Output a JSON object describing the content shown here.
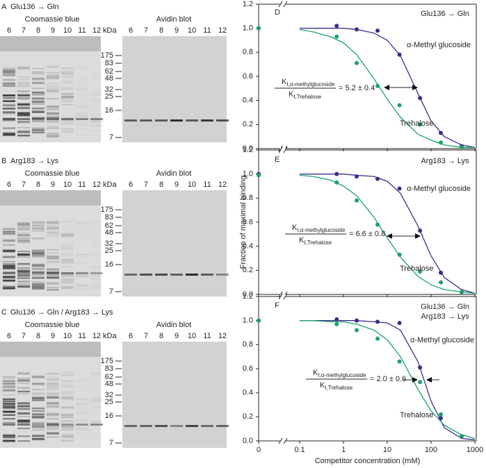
{
  "panels": [
    {
      "letter": "A",
      "mutation": "Glu136 → Gln",
      "coomassie": "Coomassie blue",
      "avidin": "Avidin blot",
      "unit": "kDa",
      "lanes": [
        "6",
        "7",
        "8",
        "9",
        "10",
        "11",
        "12"
      ],
      "markers": [
        "175",
        "83",
        "62",
        "48",
        "32",
        "25",
        "16",
        "7"
      ]
    },
    {
      "letter": "B",
      "mutation": "Arg183 → Lys",
      "coomassie": "Coomassie blue",
      "avidin": "Avidin blot",
      "unit": "kDa",
      "lanes": [
        "6",
        "7",
        "8",
        "9",
        "10",
        "11",
        "12"
      ],
      "markers": [
        "175",
        "83",
        "62",
        "48",
        "32",
        "25",
        "16",
        "7"
      ]
    },
    {
      "letter": "C",
      "mutation": "Glu136 → Gln / Arg183 → Lys",
      "coomassie": "Coomassie blue",
      "avidin": "Avidin blot",
      "unit": "kDa",
      "lanes": [
        "6",
        "7",
        "8",
        "9",
        "10",
        "11",
        "12"
      ],
      "markers": [
        "175",
        "83",
        "62",
        "48",
        "32",
        "25",
        "16",
        "7"
      ]
    }
  ],
  "chart_data": [
    {
      "type": "scatter",
      "letter": "D",
      "mutation": [
        "Glu136 → Gln"
      ],
      "log_x": true,
      "axis_break": true,
      "xlim": [
        0,
        1000
      ],
      "xticks": [
        0,
        0.1,
        1,
        10,
        100,
        1000
      ],
      "ylim": [
        0,
        1.2
      ],
      "yticks": [
        {
          "value": 0,
          "label": "0.0"
        },
        0.2,
        0.4,
        0.6,
        0.8,
        {
          "value": 1,
          "label": "1.0"
        },
        1.2
      ],
      "ratio": {
        "numerator": "K",
        "numerator_sub": "I,α-methylglucoside",
        "denominator": "K",
        "denominator_sub": "I,Trehalose",
        "value": "= 5.2 ± 0.4"
      },
      "series": [
        {
          "name": "α-Methyl glucoside",
          "color": "#3b2e8c",
          "x": [
            0,
            0.7,
            2,
            6,
            19,
            56,
            167,
            500
          ],
          "values": [
            1.0,
            1.02,
            0.99,
            0.98,
            0.78,
            0.42,
            0.13,
            0.02
          ],
          "fit_x": [
            0.1,
            0.2,
            0.5,
            1,
            2,
            5,
            10,
            20,
            50,
            100,
            200,
            500,
            1000
          ],
          "fit_values": [
            1.0,
            1.0,
            1.0,
            1.0,
            0.99,
            0.96,
            0.9,
            0.77,
            0.46,
            0.23,
            0.1,
            0.03,
            0.01
          ]
        },
        {
          "name": "Trehalose",
          "color": "#1aa36a",
          "x": [
            0,
            0.7,
            2,
            6,
            19,
            56,
            167,
            500
          ],
          "values": [
            1.0,
            0.93,
            0.71,
            0.52,
            0.36,
            0.2,
            0.05,
            0.01
          ],
          "fit_x": [
            0.1,
            0.2,
            0.5,
            1,
            2,
            5,
            10,
            20,
            50,
            100,
            200,
            500,
            1000
          ],
          "fit_values": [
            0.99,
            0.97,
            0.93,
            0.88,
            0.78,
            0.58,
            0.41,
            0.26,
            0.12,
            0.07,
            0.03,
            0.01,
            0.01
          ]
        }
      ]
    },
    {
      "type": "scatter",
      "letter": "E",
      "mutation": [
        "Arg183 → Lys"
      ],
      "log_x": true,
      "axis_break": true,
      "xlim": [
        0,
        1000
      ],
      "xticks": [
        0,
        0.1,
        1,
        10,
        100,
        1000
      ],
      "ylim": [
        0,
        1.2
      ],
      "yticks": [
        {
          "value": 0,
          "label": "0.0"
        },
        0.2,
        0.4,
        0.6,
        0.8,
        {
          "value": 1,
          "label": "1.0"
        },
        1.2
      ],
      "y_label": "Fraction of maximal binding",
      "ratio": {
        "numerator": "K",
        "numerator_sub": "I,α-methylglucoside",
        "denominator": "K",
        "denominator_sub": "I,Trehalose",
        "value": "= 6.6 ± 0.8"
      },
      "series": [
        {
          "name": "α-Methyl glucoside",
          "color": "#3b2e8c",
          "x": [
            0,
            0.7,
            2,
            6,
            19,
            56,
            167,
            500
          ],
          "values": [
            1.0,
            1.0,
            0.98,
            0.96,
            0.88,
            0.53,
            0.18,
            0.02
          ],
          "fit_x": [
            0.1,
            0.2,
            0.5,
            1,
            2,
            5,
            10,
            20,
            50,
            100,
            200,
            500,
            1000
          ],
          "fit_values": [
            1.0,
            1.0,
            1.0,
            1.0,
            0.99,
            0.98,
            0.94,
            0.84,
            0.57,
            0.32,
            0.14,
            0.04,
            0.01
          ]
        },
        {
          "name": "Trehalose",
          "color": "#1aa36a",
          "x": [
            0,
            0.7,
            2,
            6,
            19,
            56,
            167,
            500
          ],
          "values": [
            0.99,
            0.93,
            0.78,
            0.58,
            0.33,
            0.19,
            0.1,
            0.02
          ],
          "fit_x": [
            0.1,
            0.2,
            0.5,
            1,
            2,
            5,
            10,
            20,
            50,
            100,
            200,
            500,
            1000
          ],
          "fit_values": [
            0.99,
            0.98,
            0.95,
            0.9,
            0.82,
            0.64,
            0.47,
            0.31,
            0.15,
            0.08,
            0.04,
            0.02,
            0.01
          ]
        }
      ]
    },
    {
      "type": "scatter",
      "letter": "F",
      "mutation": [
        "Glu136 → Gln",
        "Arg183 → Lys"
      ],
      "log_x": true,
      "axis_break": true,
      "xlim": [
        0,
        1000
      ],
      "xticks": [
        0,
        0.1,
        1,
        10,
        100,
        1000
      ],
      "ylim": [
        0,
        1.2
      ],
      "yticks": [
        {
          "value": 0,
          "label": "0.0"
        },
        0.2,
        0.4,
        0.6,
        0.8,
        {
          "value": 1,
          "label": "1.0"
        },
        1.2
      ],
      "x_label": "Competitor concentration (mM)",
      "ratio": {
        "numerator": "K",
        "numerator_sub": "I,α-methylglucoside",
        "denominator": "K",
        "denominator_sub": "I,Trehalose",
        "value": "= 2.0 ± 0.6"
      },
      "series": [
        {
          "name": "α-Methyl glucoside",
          "color": "#3b2e8c",
          "x": [
            0,
            0.7,
            2,
            6,
            19,
            56,
            167,
            500
          ],
          "values": [
            1.0,
            1.01,
            1.0,
            0.99,
            0.98,
            0.61,
            0.19,
            0.04
          ],
          "fit_x": [
            0.1,
            0.2,
            0.5,
            1,
            2,
            5,
            10,
            20,
            50,
            100,
            200,
            500,
            1000
          ],
          "fit_values": [
            1.0,
            1.0,
            1.0,
            1.0,
            1.0,
            0.99,
            0.98,
            0.92,
            0.66,
            0.33,
            0.11,
            0.02,
            0.01
          ]
        },
        {
          "name": "Trehalose",
          "color": "#1aa36a",
          "x": [
            0,
            0.7,
            2,
            6,
            19,
            56,
            167,
            500
          ],
          "values": [
            1.0,
            0.97,
            0.92,
            0.85,
            0.66,
            0.49,
            0.22,
            0.04
          ],
          "fit_x": [
            0.1,
            0.2,
            0.5,
            1,
            2,
            5,
            10,
            20,
            50,
            100,
            200,
            500,
            1000
          ],
          "fit_values": [
            1.0,
            1.0,
            0.99,
            0.99,
            0.97,
            0.92,
            0.84,
            0.7,
            0.43,
            0.25,
            0.13,
            0.05,
            0.02
          ]
        }
      ]
    }
  ]
}
